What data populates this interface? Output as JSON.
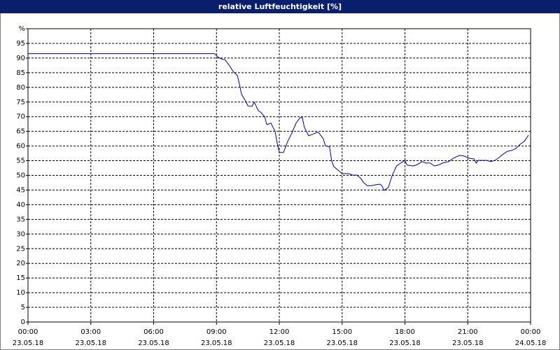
{
  "chart_data": {
    "type": "line",
    "title": "relative Luftfeuchtigkeit [%]",
    "title_bar_color": "#0a1e6e",
    "xlim": [
      0,
      24
    ],
    "xticks": [
      {
        "value": 0,
        "label": "00:00"
      },
      {
        "value": 3,
        "label": "03:00"
      },
      {
        "value": 6,
        "label": "06:00"
      },
      {
        "value": 9,
        "label": "09:00"
      },
      {
        "value": 12,
        "label": "12:00"
      },
      {
        "value": 15,
        "label": "15:00"
      },
      {
        "value": 18,
        "label": "18:00"
      },
      {
        "value": 21,
        "label": "21:00"
      },
      {
        "value": 24,
        "label": "00:00"
      }
    ],
    "xtick_dates": [
      "23.05.18",
      "23.05.18",
      "23.05.18",
      "23.05.18",
      "23.05.18",
      "23.05.18",
      "23.05.18",
      "23.05.18",
      "24.05.18"
    ],
    "ylim": [
      0,
      100
    ],
    "yticks": [
      0,
      5,
      10,
      15,
      20,
      25,
      30,
      35,
      40,
      45,
      50,
      55,
      60,
      65,
      70,
      75,
      80,
      85,
      90,
      95,
      {
        "value": 100,
        "label": "%"
      }
    ],
    "grid": true,
    "series": [
      {
        "color": "#0000a0",
        "x": [
          0,
          8.9,
          9.1,
          9.3,
          9.4,
          9.6,
          9.8,
          10.0,
          10.1,
          10.2,
          10.4,
          10.5,
          10.7,
          10.8,
          11.0,
          11.1,
          11.3,
          11.4,
          11.6,
          11.8,
          11.9,
          12.0,
          12.2,
          12.4,
          12.6,
          12.8,
          13.0,
          13.1,
          13.2,
          13.4,
          13.6,
          13.8,
          13.9,
          14.1,
          14.2,
          14.4,
          14.5,
          14.6,
          14.8,
          15.0,
          15.1,
          15.3,
          15.5,
          15.7,
          15.9,
          16.0,
          16.2,
          16.4,
          16.6,
          16.8,
          16.9,
          17.0,
          17.2,
          17.4,
          17.6,
          17.8,
          18.0,
          18.1,
          18.4,
          18.6,
          18.8,
          19.0,
          19.2,
          19.4,
          19.6,
          19.8,
          20.1,
          20.3,
          20.6,
          20.8,
          21.1,
          21.3,
          21.4,
          21.5,
          21.7,
          21.9,
          22.1,
          22.3,
          22.5,
          22.7,
          22.9,
          23.1,
          23.3,
          23.5,
          23.7,
          23.9
        ],
        "values": [
          91.5,
          91.5,
          90.2,
          89.5,
          89.5,
          87.6,
          85.4,
          84,
          81,
          77.6,
          75.2,
          73.7,
          73.5,
          75,
          72,
          71.6,
          70,
          67.3,
          67.8,
          65,
          61,
          57.8,
          57.8,
          61.6,
          64.4,
          67.8,
          69.7,
          69.7,
          66.3,
          63.5,
          64,
          64.7,
          64.4,
          62.5,
          60.1,
          59.7,
          54.9,
          53,
          51.8,
          50.6,
          50.6,
          50.6,
          50.1,
          50.1,
          48.9,
          47.7,
          46.5,
          46.5,
          46.8,
          47,
          46.5,
          44.9,
          45.8,
          50.1,
          53.2,
          54.2,
          55.1,
          53.5,
          53.2,
          53.7,
          54.7,
          54.2,
          54.2,
          53.2,
          53.5,
          54.2,
          54.7,
          55.8,
          56.8,
          56.6,
          55.8,
          55.6,
          54.2,
          55.1,
          55.1,
          55.1,
          54.7,
          55.1,
          56.1,
          57.3,
          58.2,
          58.5,
          59.2,
          60.6,
          61.6,
          63.7
        ]
      }
    ]
  }
}
